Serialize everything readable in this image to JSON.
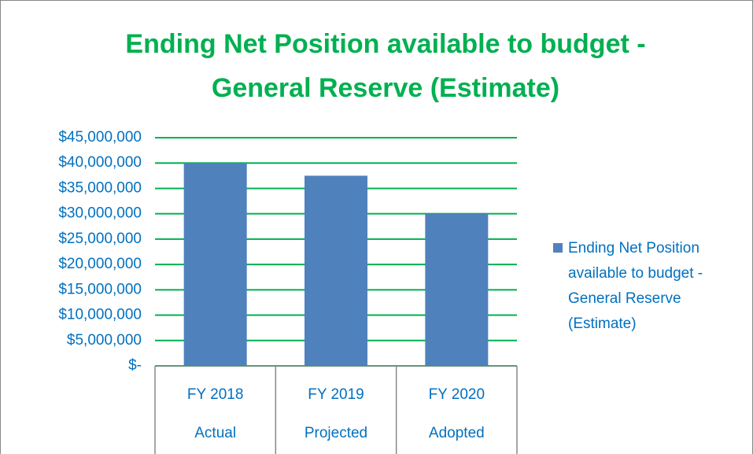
{
  "chart_data": {
    "type": "bar",
    "title": "Ending Net Position available to budget - General Reserve (Estimate)",
    "categories": [
      "FY 2018",
      "FY 2019",
      "FY 2020"
    ],
    "subcategories": [
      "Actual",
      "Projected",
      "Adopted"
    ],
    "series": [
      {
        "name": "Ending Net Position available to budget - General Reserve (Estimate)",
        "color": "#4f81bd",
        "values": [
          40000000,
          37500000,
          30000000
        ]
      }
    ],
    "ylim": [
      0,
      45000000
    ],
    "yticks": [
      {
        "value": 0,
        "label": "$-"
      },
      {
        "value": 5000000,
        "label": "$5,000,000"
      },
      {
        "value": 10000000,
        "label": "$10,000,000"
      },
      {
        "value": 15000000,
        "label": "$15,000,000"
      },
      {
        "value": 20000000,
        "label": "$20,000,000"
      },
      {
        "value": 25000000,
        "label": "$25,000,000"
      },
      {
        "value": 30000000,
        "label": "$30,000,000"
      },
      {
        "value": 35000000,
        "label": "$35,000,000"
      },
      {
        "value": 40000000,
        "label": "$40,000,000"
      },
      {
        "value": 45000000,
        "label": "$45,000,000"
      }
    ],
    "grid": true,
    "grid_color": "#00b050",
    "legend": "right"
  }
}
